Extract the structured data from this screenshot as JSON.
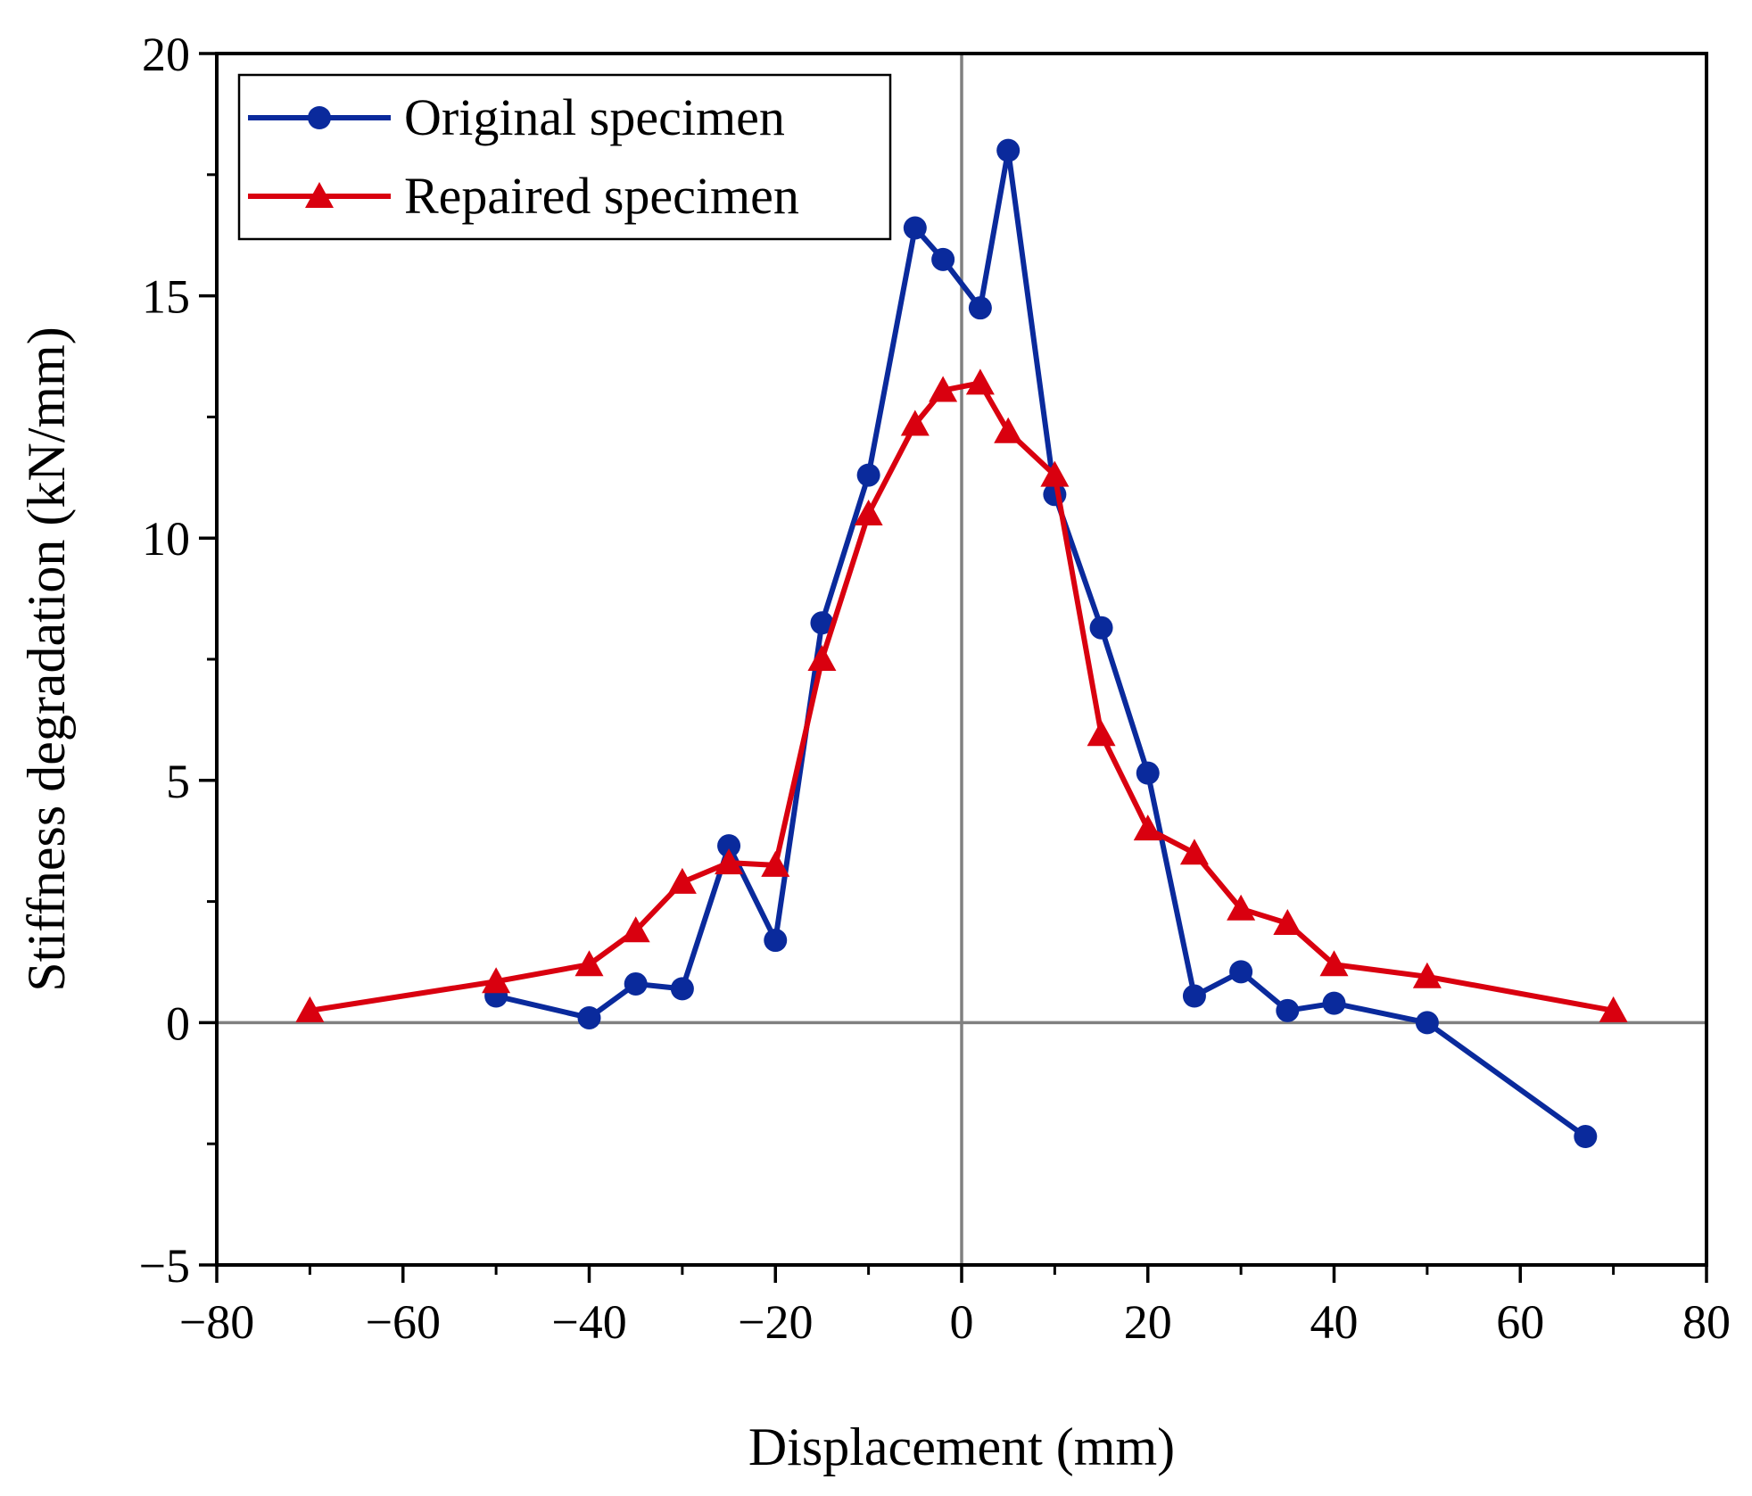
{
  "chart_data": {
    "type": "line",
    "title": "",
    "xlabel": "Displacement (mm)",
    "ylabel": "Stiffness degradation (kN/mm)",
    "xlim": [
      -80,
      80
    ],
    "ylim": [
      -5,
      20
    ],
    "x_ticks": [
      -80,
      -60,
      -40,
      -20,
      0,
      20,
      40,
      60,
      80
    ],
    "x_tick_labels": [
      "−80",
      "−60",
      "−40",
      "−20",
      "0",
      "20",
      "40",
      "60",
      "80"
    ],
    "y_ticks": [
      -5,
      0,
      5,
      10,
      15,
      20
    ],
    "y_tick_labels": [
      "−5",
      "0",
      "5",
      "10",
      "15",
      "20"
    ],
    "grid": false,
    "reference_lines": {
      "x": 0,
      "y": 0
    },
    "legend_position": "top-left",
    "series": [
      {
        "name": "Original specimen",
        "color": "#0a2a9c",
        "marker": "circle",
        "x": [
          -50,
          -40,
          -35,
          -30,
          -25,
          -20,
          -15,
          -10,
          -5,
          -2,
          2,
          5,
          10,
          15,
          20,
          25,
          30,
          35,
          40,
          50,
          67
        ],
        "values": [
          0.55,
          0.1,
          0.8,
          0.7,
          3.65,
          1.7,
          8.25,
          11.3,
          16.4,
          15.75,
          14.75,
          18.0,
          10.9,
          8.15,
          5.15,
          0.55,
          1.05,
          0.25,
          0.4,
          0.0,
          -2.35
        ]
      },
      {
        "name": "Repaired specimen",
        "color": "#d9000f",
        "marker": "triangle",
        "x": [
          -70,
          -50,
          -40,
          -35,
          -30,
          -25,
          -20,
          -15,
          -10,
          -5,
          -2,
          2,
          5,
          10,
          15,
          20,
          25,
          30,
          35,
          40,
          50,
          70
        ],
        "values": [
          0.25,
          0.85,
          1.2,
          1.9,
          2.9,
          3.3,
          3.25,
          7.5,
          10.5,
          12.35,
          13.05,
          13.2,
          12.2,
          11.3,
          5.95,
          4.0,
          3.5,
          2.35,
          2.05,
          1.2,
          0.95,
          0.25
        ]
      }
    ]
  }
}
